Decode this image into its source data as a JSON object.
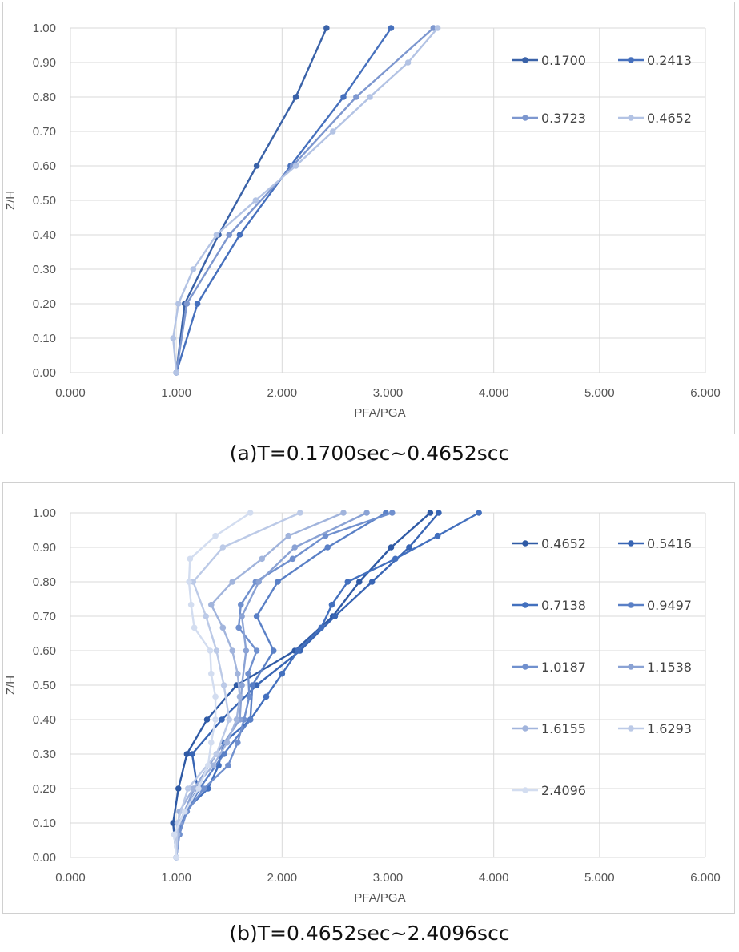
{
  "captions": {
    "a": "(a)T=0.1700sec~0.4652scc",
    "b": "(b)T=0.4652sec~2.4096scc"
  },
  "chart_data": [
    {
      "type": "line",
      "xlabel": "PFA/PGA",
      "ylabel": "Z/H",
      "xlim": [
        0,
        6
      ],
      "ylim": [
        0,
        1
      ],
      "x_ticks": [
        "0.000",
        "1.000",
        "2.000",
        "3.000",
        "4.000",
        "5.000",
        "6.000"
      ],
      "y_ticks": [
        "0.00",
        "0.10",
        "0.20",
        "0.30",
        "0.40",
        "0.50",
        "0.60",
        "0.70",
        "0.80",
        "0.90",
        "1.00"
      ],
      "grid": true,
      "legend_position": "right",
      "legend_columns": 2,
      "series": [
        {
          "name": "0.1700",
          "color": "#3a62a8",
          "points": [
            [
              1.0,
              0.0
            ],
            [
              1.08,
              0.2
            ],
            [
              1.4,
              0.4
            ],
            [
              1.76,
              0.6
            ],
            [
              2.13,
              0.8
            ],
            [
              2.42,
              1.0
            ]
          ]
        },
        {
          "name": "0.2413",
          "color": "#4670bd",
          "points": [
            [
              1.0,
              0.0
            ],
            [
              1.2,
              0.2
            ],
            [
              1.6,
              0.4
            ],
            [
              2.08,
              0.6
            ],
            [
              2.58,
              0.8
            ],
            [
              3.03,
              1.0
            ]
          ]
        },
        {
          "name": "0.3723",
          "color": "#7d97cf",
          "points": [
            [
              1.0,
              0.0
            ],
            [
              1.1,
              0.2
            ],
            [
              1.5,
              0.4
            ],
            [
              2.1,
              0.6
            ],
            [
              2.7,
              0.8
            ],
            [
              3.43,
              1.0
            ]
          ]
        },
        {
          "name": "0.4652",
          "color": "#b3c3e4",
          "points": [
            [
              1.0,
              0.0
            ],
            [
              0.97,
              0.1
            ],
            [
              1.02,
              0.2
            ],
            [
              1.16,
              0.3
            ],
            [
              1.38,
              0.4
            ],
            [
              1.75,
              0.5
            ],
            [
              2.13,
              0.6
            ],
            [
              2.48,
              0.7
            ],
            [
              2.83,
              0.8
            ],
            [
              3.19,
              0.9
            ],
            [
              3.47,
              1.0
            ]
          ]
        }
      ]
    },
    {
      "type": "line",
      "xlabel": "PFA/PGA",
      "ylabel": "Z/H",
      "xlim": [
        0,
        6
      ],
      "ylim": [
        0,
        1
      ],
      "x_ticks": [
        "0.000",
        "1.000",
        "2.000",
        "3.000",
        "4.000",
        "5.000",
        "6.000"
      ],
      "y_ticks": [
        "0.00",
        "0.10",
        "0.20",
        "0.30",
        "0.40",
        "0.50",
        "0.60",
        "0.70",
        "0.80",
        "0.90",
        "1.00"
      ],
      "grid": true,
      "legend_position": "right",
      "legend_columns": 2,
      "series": [
        {
          "name": "0.4652",
          "color": "#2f5aa5",
          "points": [
            [
              1.0,
              0.0
            ],
            [
              0.97,
              0.1
            ],
            [
              1.02,
              0.2
            ],
            [
              1.1,
              0.3
            ],
            [
              1.29,
              0.4
            ],
            [
              1.57,
              0.5
            ],
            [
              2.12,
              0.6
            ],
            [
              2.48,
              0.7
            ],
            [
              2.73,
              0.8
            ],
            [
              3.03,
              0.9
            ],
            [
              3.4,
              1.0
            ]
          ]
        },
        {
          "name": "0.5416",
          "color": "#3865b4",
          "points": [
            [
              1.0,
              0.0
            ],
            [
              1.03,
              0.1
            ],
            [
              1.2,
              0.2
            ],
            [
              1.15,
              0.3
            ],
            [
              1.43,
              0.4
            ],
            [
              1.76,
              0.5
            ],
            [
              2.17,
              0.6
            ],
            [
              2.5,
              0.7
            ],
            [
              2.85,
              0.8
            ],
            [
              3.2,
              0.9
            ],
            [
              3.48,
              1.0
            ]
          ]
        },
        {
          "name": "0.7138",
          "color": "#4370be",
          "points": [
            [
              1.0,
              0.0
            ],
            [
              1.02,
              0.0667
            ],
            [
              1.08,
              0.1333
            ],
            [
              1.3,
              0.2
            ],
            [
              1.4,
              0.2667
            ],
            [
              1.45,
              0.3333
            ],
            [
              1.7,
              0.4
            ],
            [
              1.85,
              0.4667
            ],
            [
              2.0,
              0.5333
            ],
            [
              2.15,
              0.6
            ],
            [
              2.37,
              0.6667
            ],
            [
              2.47,
              0.7333
            ],
            [
              2.62,
              0.8
            ],
            [
              3.07,
              0.8667
            ],
            [
              3.47,
              0.9333
            ],
            [
              3.86,
              1.0
            ]
          ]
        },
        {
          "name": "0.9497",
          "color": "#5a80c6",
          "points": [
            [
              1.0,
              0.0
            ],
            [
              1.04,
              0.1
            ],
            [
              1.22,
              0.2
            ],
            [
              1.45,
              0.3
            ],
            [
              1.7,
              0.4
            ],
            [
              1.72,
              0.5
            ],
            [
              1.92,
              0.6
            ],
            [
              1.76,
              0.7
            ],
            [
              1.96,
              0.8
            ],
            [
              2.43,
              0.9
            ],
            [
              2.98,
              1.0
            ]
          ]
        },
        {
          "name": "1.0187",
          "color": "#7090ce",
          "points": [
            [
              1.0,
              0.0
            ],
            [
              1.03,
              0.0667
            ],
            [
              1.1,
              0.1333
            ],
            [
              1.26,
              0.2
            ],
            [
              1.49,
              0.2667
            ],
            [
              1.58,
              0.3333
            ],
            [
              1.64,
              0.4
            ],
            [
              1.69,
              0.4667
            ],
            [
              1.68,
              0.5333
            ],
            [
              1.76,
              0.6
            ],
            [
              1.59,
              0.6667
            ],
            [
              1.61,
              0.7333
            ],
            [
              1.75,
              0.8
            ],
            [
              2.1,
              0.8667
            ],
            [
              2.41,
              0.9333
            ],
            [
              3.04,
              1.0
            ]
          ]
        },
        {
          "name": "1.1538",
          "color": "#8aa2d4",
          "points": [
            [
              1.0,
              0.0
            ],
            [
              1.03,
              0.1
            ],
            [
              1.17,
              0.2
            ],
            [
              1.38,
              0.3
            ],
            [
              1.6,
              0.4
            ],
            [
              1.62,
              0.5
            ],
            [
              1.66,
              0.6
            ],
            [
              1.62,
              0.7
            ],
            [
              1.78,
              0.8
            ],
            [
              2.12,
              0.9
            ],
            [
              2.8,
              1.0
            ]
          ]
        },
        {
          "name": "1.6155",
          "color": "#a1b4dc",
          "points": [
            [
              1.0,
              0.0
            ],
            [
              1.01,
              0.0667
            ],
            [
              1.03,
              0.1333
            ],
            [
              1.16,
              0.2
            ],
            [
              1.35,
              0.2667
            ],
            [
              1.48,
              0.3333
            ],
            [
              1.57,
              0.4
            ],
            [
              1.6,
              0.4667
            ],
            [
              1.58,
              0.5333
            ],
            [
              1.53,
              0.6
            ],
            [
              1.44,
              0.6667
            ],
            [
              1.33,
              0.7333
            ],
            [
              1.53,
              0.8
            ],
            [
              1.81,
              0.8667
            ],
            [
              2.06,
              0.9333
            ],
            [
              2.58,
              1.0
            ]
          ]
        },
        {
          "name": "1.6293",
          "color": "#bccae7",
          "points": [
            [
              1.0,
              0.0
            ],
            [
              1.01,
              0.1
            ],
            [
              1.11,
              0.2
            ],
            [
              1.38,
              0.3
            ],
            [
              1.5,
              0.4
            ],
            [
              1.45,
              0.5
            ],
            [
              1.38,
              0.6
            ],
            [
              1.28,
              0.7
            ],
            [
              1.16,
              0.8
            ],
            [
              1.44,
              0.9
            ],
            [
              2.17,
              1.0
            ]
          ]
        },
        {
          "name": "2.4096",
          "color": "#d3ddf0",
          "points": [
            [
              1.0,
              0.0
            ],
            [
              0.98,
              0.0667
            ],
            [
              1.08,
              0.1333
            ],
            [
              1.21,
              0.2
            ],
            [
              1.3,
              0.2667
            ],
            [
              1.33,
              0.3333
            ],
            [
              1.37,
              0.4
            ],
            [
              1.37,
              0.4667
            ],
            [
              1.33,
              0.5333
            ],
            [
              1.32,
              0.6
            ],
            [
              1.17,
              0.6667
            ],
            [
              1.14,
              0.7333
            ],
            [
              1.12,
              0.8
            ],
            [
              1.13,
              0.8667
            ],
            [
              1.37,
              0.9333
            ],
            [
              1.7,
              1.0
            ]
          ]
        }
      ]
    }
  ]
}
